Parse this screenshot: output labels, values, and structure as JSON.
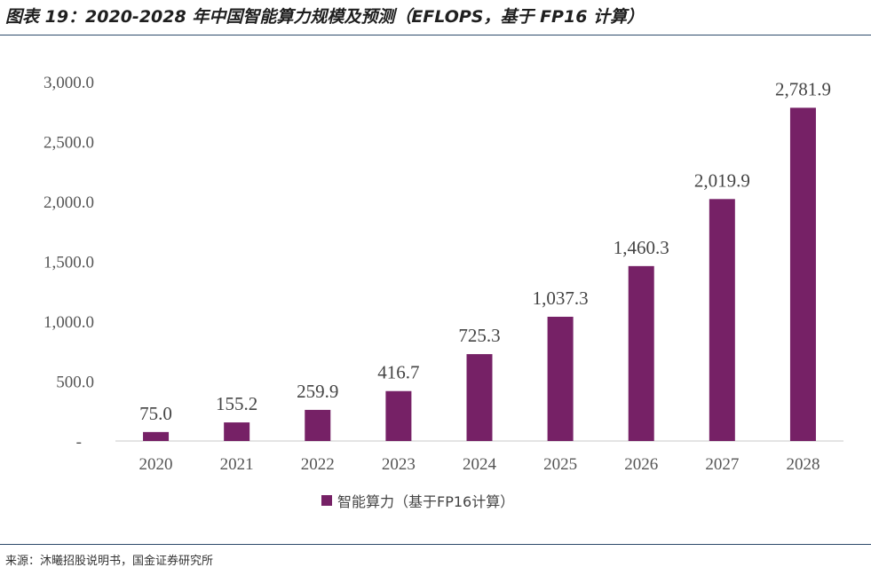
{
  "header": {
    "title": "图表 19：2020-2028 年中国智能算力规模及预测（EFLOPS，基于 FP16 计算）"
  },
  "footer": {
    "source": "来源：沐曦招股说明书，国金证券研究所"
  },
  "colors": {
    "bar": "#762166",
    "axis": "#c8c8c8",
    "rule": "#2d4a6b"
  },
  "chart_data": {
    "type": "bar",
    "title": "2020-2028 年中国智能算力规模及预测（EFLOPS，基于 FP16 计算）",
    "categories": [
      "2020",
      "2021",
      "2022",
      "2023",
      "2024",
      "2025",
      "2026",
      "2027",
      "2028"
    ],
    "series": [
      {
        "name": "智能算力（基于FP16计算）",
        "values": [
          75.0,
          155.2,
          259.9,
          416.7,
          725.3,
          1037.3,
          1460.3,
          2019.9,
          2781.9
        ],
        "value_labels": [
          "75.0",
          "155.2",
          "259.9",
          "416.7",
          "725.3",
          "1,037.3",
          "1,460.3",
          "2,019.9",
          "2,781.9"
        ]
      }
    ],
    "yticks": [
      0,
      500,
      1000,
      1500,
      2000,
      2500,
      3000
    ],
    "ytick_labels": [
      "-",
      "500.0",
      "1,000.0",
      "1,500.0",
      "2,000.0",
      "2,500.0",
      "3,000.0"
    ],
    "ylim": [
      0,
      3000
    ],
    "xlabel": "",
    "ylabel": "",
    "grid": false,
    "legend_position": "bottom-center"
  }
}
